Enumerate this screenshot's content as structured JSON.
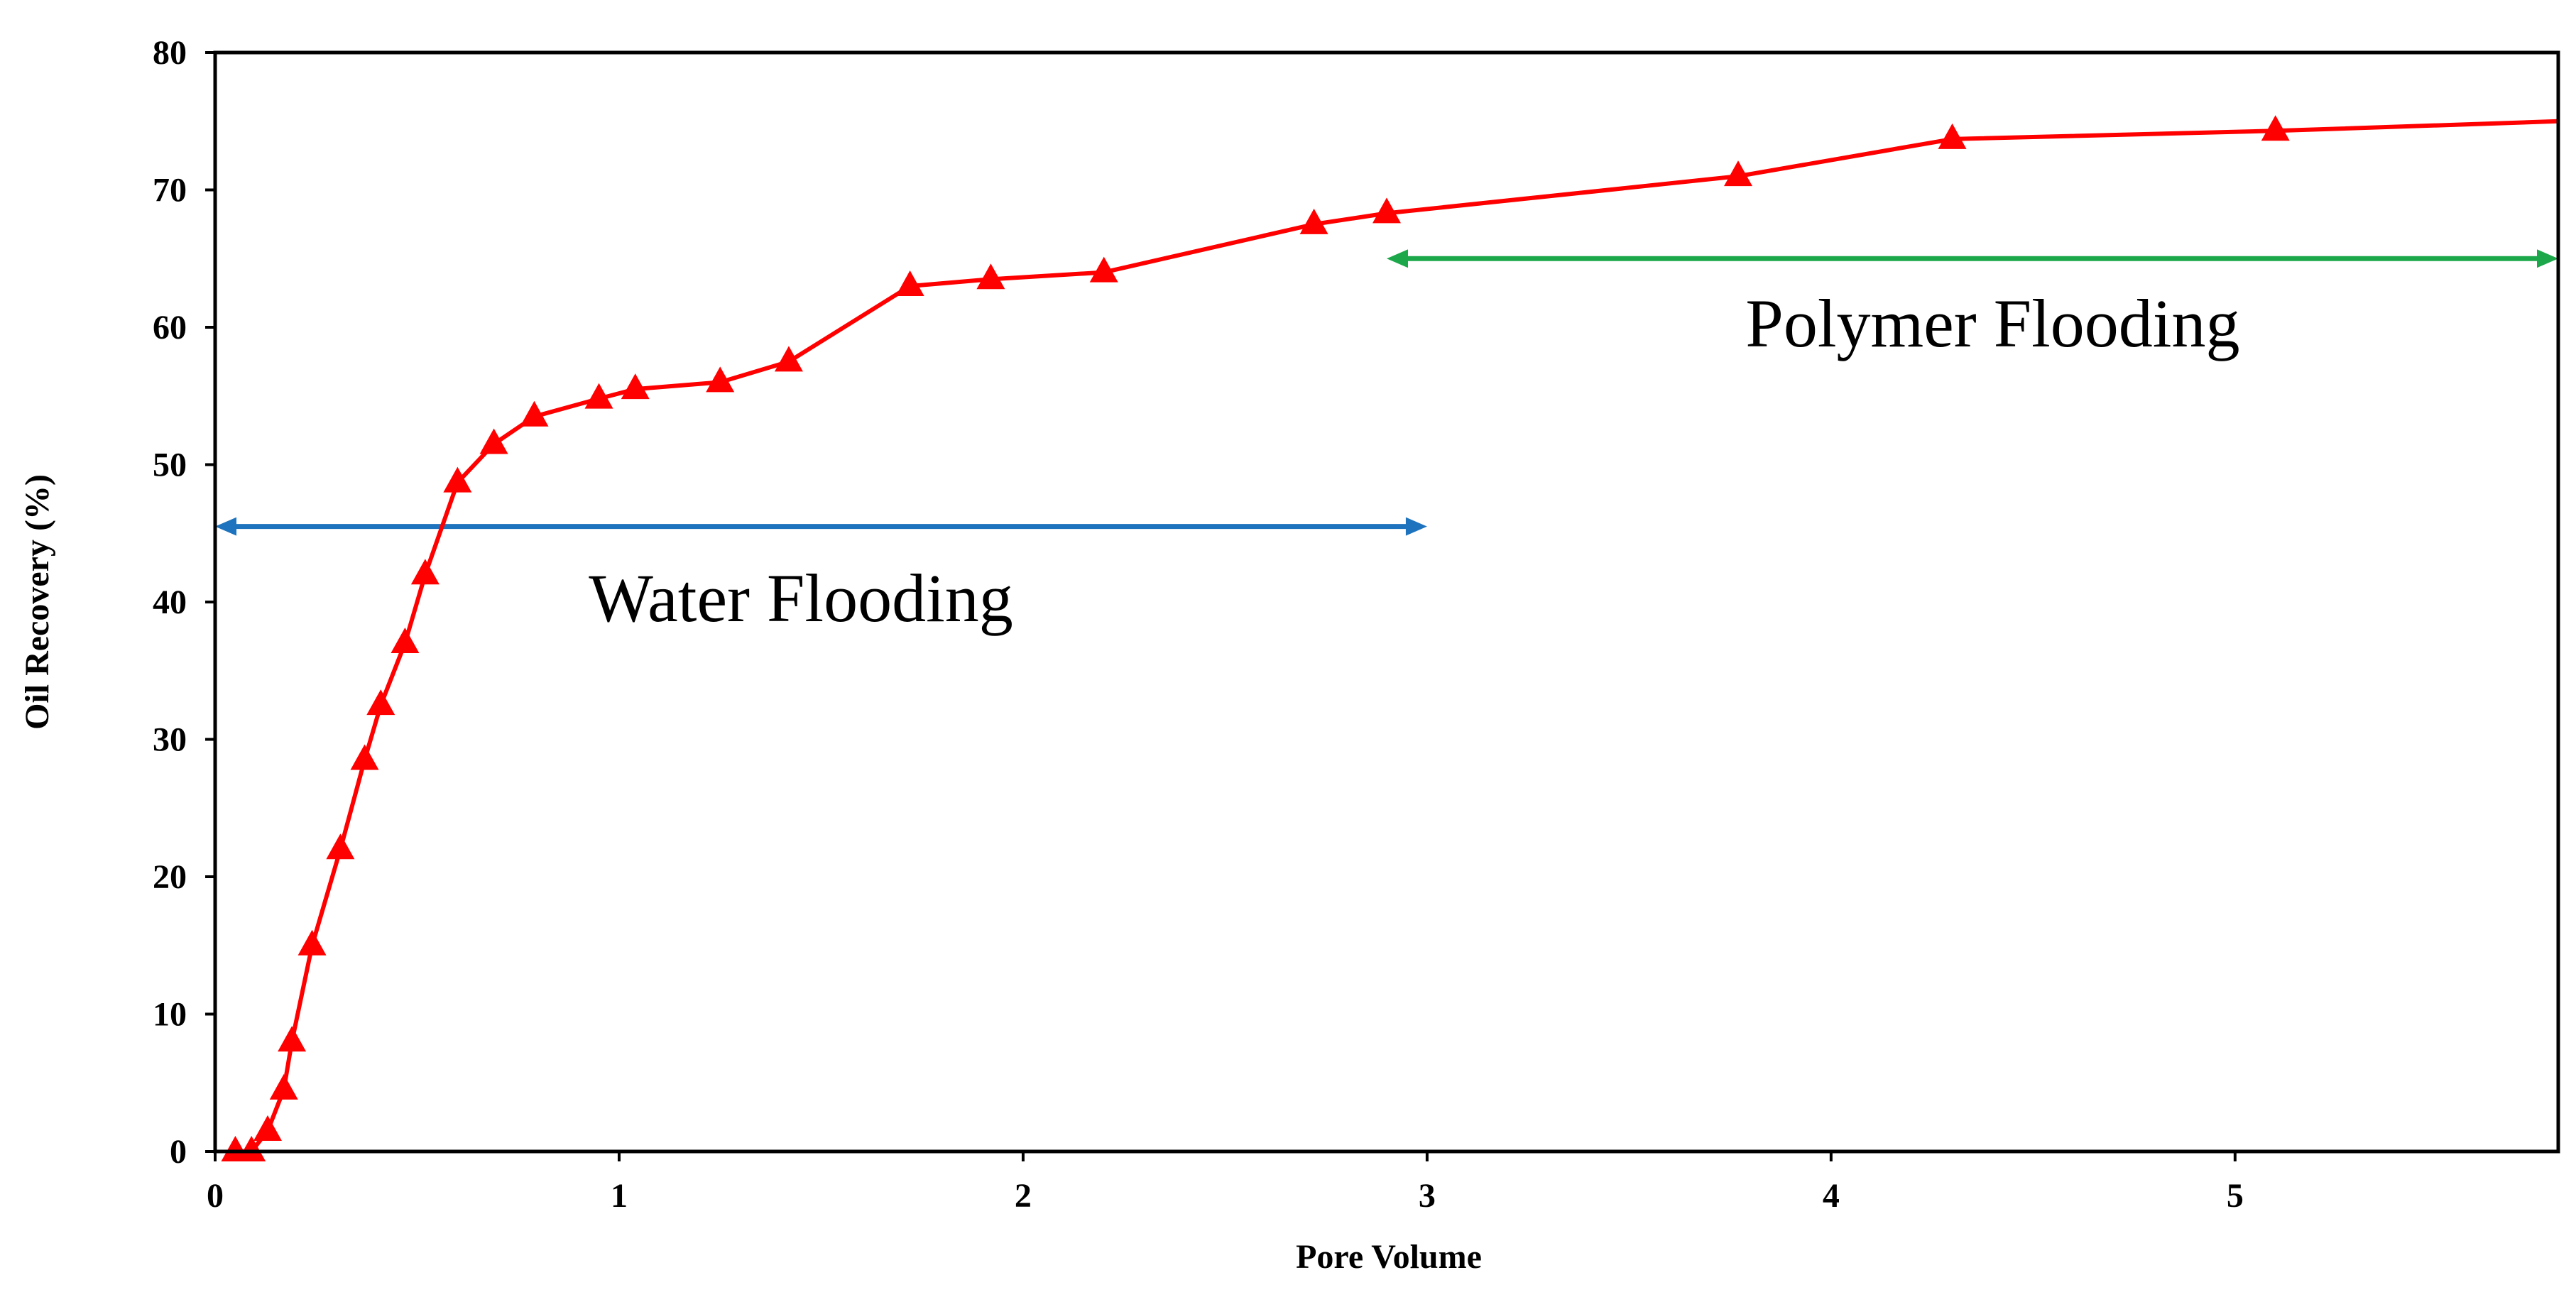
{
  "chart_data": {
    "type": "line",
    "title": "",
    "xlabel": "Pore Volume",
    "ylabel": "Oil Recovery (%)",
    "xlim": [
      0,
      5.8
    ],
    "ylim": [
      0,
      80
    ],
    "xticks": [
      0,
      1,
      2,
      3,
      4,
      5
    ],
    "yticks": [
      0,
      10,
      20,
      30,
      40,
      50,
      60,
      70,
      80
    ],
    "grid": false,
    "legend": "none",
    "series": [
      {
        "name": "Oil Recovery",
        "color": "#ff0000",
        "marker": "triangle",
        "x": [
          0.05,
          0.09,
          0.13,
          0.17,
          0.19,
          0.24,
          0.31,
          0.37,
          0.41,
          0.47,
          0.52,
          0.6,
          0.69,
          0.79,
          0.95,
          1.04,
          1.25,
          1.42,
          1.72,
          1.92,
          2.2,
          2.72,
          2.9,
          3.77,
          4.3,
          5.1
        ],
        "y": [
          0,
          0,
          1.5,
          4.5,
          8,
          15,
          22,
          28.5,
          32.5,
          37,
          42,
          48.7,
          51.5,
          53.5,
          54.8,
          55.5,
          56,
          57.5,
          63,
          63.5,
          64,
          67.5,
          68.3,
          71,
          73.7,
          74.3
        ],
        "end_x": 5.8,
        "end_y": 75
      }
    ],
    "annotations": [
      {
        "text": "Water Flooding",
        "color": "#1e73be",
        "arrow_from_x": 0.0,
        "arrow_to_x": 3.0,
        "arrow_y": 45.5,
        "label_x": 1.45,
        "label_y": 38.6
      },
      {
        "text": "Polymer Flooding",
        "color": "#1ca84a",
        "arrow_from_x": 2.9,
        "arrow_to_x": 5.8,
        "arrow_y": 65,
        "label_x": 4.4,
        "label_y": 58.6
      }
    ]
  }
}
